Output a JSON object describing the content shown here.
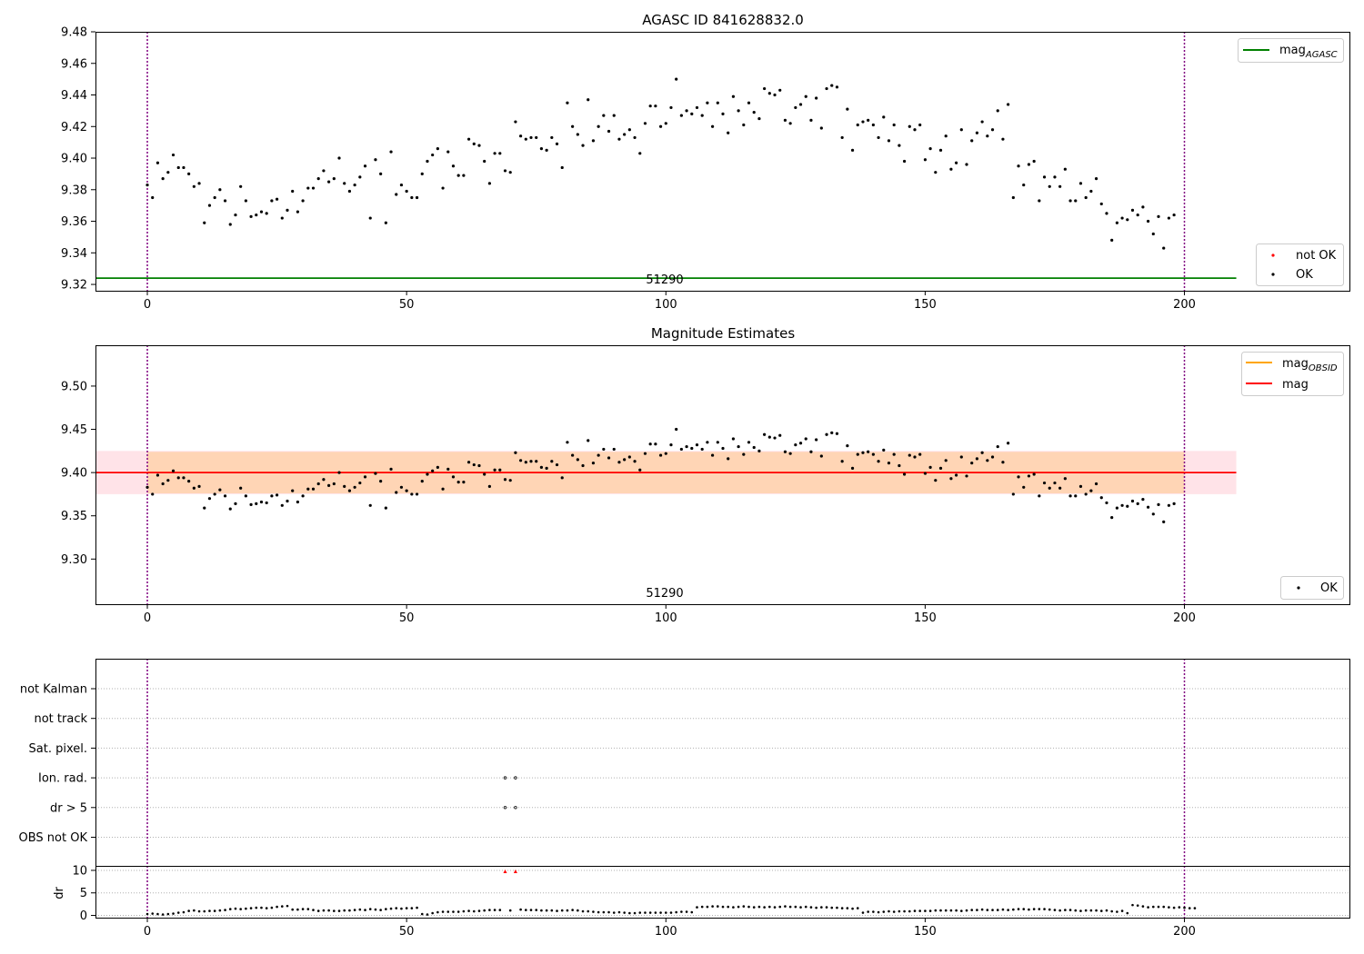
{
  "chart_data": [
    {
      "type": "scatter",
      "title": "AGASC ID 841628832.0",
      "xlim": [
        -10,
        232
      ],
      "ylim": [
        9.316,
        9.48
      ],
      "xticks": [
        0,
        50,
        100,
        150,
        200
      ],
      "yticks": [
        9.32,
        9.34,
        9.36,
        9.38,
        9.4,
        9.42,
        9.44,
        9.46,
        9.48
      ],
      "ytick_labels": [
        "9.32",
        "9.34",
        "9.36",
        "9.38",
        "9.40",
        "9.42",
        "9.44",
        "9.46",
        "9.48"
      ],
      "vlines": [
        0,
        200
      ],
      "obsid_label": {
        "text": "51290",
        "x": 100,
        "y": 9.322
      },
      "hline": {
        "name": "mag_AGASC",
        "y": 9.324,
        "x_range": [
          -10,
          210
        ],
        "color": "#008000"
      },
      "series": [
        {
          "name": "OK",
          "color": "#000000",
          "y": [
            9.383,
            9.375,
            9.397,
            9.387,
            9.391,
            9.402,
            9.394,
            9.394,
            9.39,
            9.382,
            9.384,
            9.359,
            9.37,
            9.375,
            9.38,
            9.373,
            9.358,
            9.364,
            9.382,
            9.373,
            9.363,
            9.364,
            9.366,
            9.365,
            9.373,
            9.374,
            9.362,
            9.367,
            9.379,
            9.366,
            9.373,
            9.381,
            9.381,
            9.387,
            9.392,
            9.385,
            9.387,
            9.4,
            9.384,
            9.379,
            9.383,
            9.388,
            9.395,
            9.362,
            9.399,
            9.39,
            9.359,
            9.404,
            9.377,
            9.383,
            9.379,
            9.375,
            9.375,
            9.39,
            9.398,
            9.402,
            9.406,
            9.381,
            9.404,
            9.395,
            9.389,
            9.389,
            9.412,
            9.409,
            9.408,
            9.398,
            9.384,
            9.403,
            9.403,
            9.392,
            9.391,
            9.423,
            9.414,
            9.412,
            9.413,
            9.413,
            9.406,
            9.405,
            9.413,
            9.409,
            9.394,
            9.435,
            9.42,
            9.415,
            9.408,
            9.437,
            9.411,
            9.42,
            9.427,
            9.417,
            9.427,
            9.412,
            9.415,
            9.418,
            9.413,
            9.403,
            9.422,
            9.433,
            9.433,
            9.42,
            9.422,
            9.432,
            9.45,
            9.427,
            9.43,
            9.428,
            9.432,
            9.427,
            9.435,
            9.42,
            9.435,
            9.428,
            9.416,
            9.439,
            9.43,
            9.421,
            9.435,
            9.429,
            9.425,
            9.444,
            9.441,
            9.44,
            9.443,
            9.424,
            9.422,
            9.432,
            9.434,
            9.439,
            9.424,
            9.438,
            9.419,
            9.444,
            9.446,
            9.445,
            9.413,
            9.431,
            9.405,
            9.421,
            9.423,
            9.424,
            9.421,
            9.413,
            9.426,
            9.411,
            9.421,
            9.408,
            9.398,
            9.42,
            9.418,
            9.421,
            9.399,
            9.406,
            9.391,
            9.405,
            9.414,
            9.393,
            9.397,
            9.418,
            9.396,
            9.411,
            9.416,
            9.423,
            9.414,
            9.418,
            9.43,
            9.412,
            9.434,
            9.375,
            9.395,
            9.383,
            9.396,
            9.398,
            9.373,
            9.388,
            9.382,
            9.388,
            9.382,
            9.393,
            9.373,
            9.373,
            9.384,
            9.375,
            9.379,
            9.387,
            9.371,
            9.365,
            9.348,
            9.359,
            9.362,
            9.361,
            9.367,
            9.364,
            9.369,
            9.36,
            9.352,
            9.363,
            9.343,
            9.362,
            9.364
          ]
        },
        {
          "name": "not OK",
          "color": "#ff0000",
          "y": []
        }
      ],
      "legend_upper": {
        "loc": "upper right",
        "entries": [
          {
            "label": "mag",
            "sub": "AGASC",
            "color": "#008000",
            "marker": "line"
          }
        ]
      },
      "legend_lower": {
        "loc": "lower right",
        "entries": [
          {
            "label": "not OK",
            "color": "#ff0000",
            "marker": "dot"
          },
          {
            "label": "OK",
            "color": "#000000",
            "marker": "dot"
          }
        ]
      }
    },
    {
      "type": "scatter",
      "title": "Magnitude Estimates",
      "xlim": [
        -10,
        232
      ],
      "ylim": [
        9.2478,
        9.5472
      ],
      "xticks": [
        0,
        50,
        100,
        150,
        200
      ],
      "yticks": [
        9.3,
        9.35,
        9.4,
        9.45,
        9.5
      ],
      "ytick_labels": [
        "9.30",
        "9.35",
        "9.40",
        "9.45",
        "9.50"
      ],
      "vlines": [
        0,
        200
      ],
      "obsid_label": {
        "text": "51290",
        "x": 100,
        "y": 9.259
      },
      "lines": [
        {
          "name": "mag_OBSID",
          "y": 9.4,
          "x_range": [
            0,
            200
          ],
          "color": "#ffa500"
        },
        {
          "name": "mag",
          "y": 9.4,
          "x_range": [
            -10,
            210
          ],
          "color": "#ff0000"
        }
      ],
      "bands": [
        {
          "y_range": [
            9.375,
            9.425
          ],
          "x_range": [
            -10,
            210
          ],
          "color": "#ffc0cb",
          "opacity": 0.45
        },
        {
          "y_range": [
            9.376,
            9.424
          ],
          "x_range": [
            0,
            200
          ],
          "color": "#ffa500",
          "opacity": 0.22
        }
      ],
      "series": [
        {
          "name": "OK",
          "color": "#000000",
          "same_as_panel": 0
        }
      ],
      "legend_upper": {
        "loc": "upper right",
        "entries": [
          {
            "label": "mag",
            "sub": "OBSID",
            "color": "#ffa500",
            "marker": "line"
          },
          {
            "label": "mag",
            "sub": "",
            "color": "#ff0000",
            "marker": "line"
          }
        ]
      },
      "legend_lower": {
        "loc": "lower right",
        "entries": [
          {
            "label": "OK",
            "color": "#000000",
            "marker": "dot"
          }
        ]
      }
    },
    {
      "type": "scatter",
      "title": "",
      "xlim": [
        -10,
        232
      ],
      "categories": [
        "OBS not OK",
        "dr > 5",
        "Ion. rad.",
        "Sat. pixel.",
        "not track",
        "not Kalman"
      ],
      "flags": [
        {
          "category": "Ion. rad.",
          "x": [
            69,
            71
          ]
        },
        {
          "category": "dr > 5",
          "x": [
            69,
            71
          ]
        }
      ]
    },
    {
      "type": "scatter",
      "title": "",
      "xlim": [
        -10,
        232
      ],
      "ylim": [
        -0.5,
        11
      ],
      "xticks": [
        0,
        50,
        100,
        150,
        200
      ],
      "yticks": [
        0,
        5,
        10
      ],
      "ytick_labels": [
        "0",
        "5",
        "10"
      ],
      "ylabel": "dr",
      "vlines": [
        0,
        200
      ],
      "series": [
        {
          "name": "dr",
          "color": "#000000",
          "y": [
            0.3,
            0.4,
            0.3,
            0.2,
            0.3,
            0.4,
            0.6,
            0.7,
            1.0,
            1.1,
            0.9,
            0.9,
            1.0,
            1.0,
            1.1,
            1.2,
            1.4,
            1.5,
            1.4,
            1.5,
            1.6,
            1.7,
            1.7,
            1.6,
            1.7,
            1.9,
            2.0,
            2.1,
            1.3,
            1.3,
            1.4,
            1.4,
            1.2,
            1.0,
            1.1,
            1.1,
            1.0,
            1.0,
            1.1,
            1.1,
            1.2,
            1.3,
            1.2,
            1.4,
            1.3,
            1.2,
            1.4,
            1.5,
            1.6,
            1.5,
            1.6,
            1.6,
            1.7,
            0.3,
            0.2,
            0.5,
            0.7,
            0.8,
            0.8,
            0.8,
            0.8,
            0.9,
            1.0,
            0.9,
            1.0,
            1.1,
            1.2,
            1.2,
            1.2,
            null,
            1.1,
            null,
            1.3,
            1.2,
            1.2,
            1.2,
            1.1,
            1.1,
            1.1,
            1.0,
            1.1,
            1.1,
            1.2,
            1.1,
            0.9,
            0.9,
            0.8,
            0.7,
            0.7,
            0.7,
            0.6,
            0.7,
            0.6,
            0.5,
            0.5,
            0.6,
            0.6,
            0.6,
            0.6,
            0.6,
            0.6,
            0.6,
            0.7,
            0.8,
            0.8,
            0.7,
            1.8,
            1.9,
            1.9,
            2.0,
            2.0,
            1.9,
            1.9,
            1.8,
            1.9,
            2.0,
            1.9,
            1.8,
            1.9,
            1.8,
            1.9,
            1.8,
            1.9,
            2.0,
            1.9,
            1.9,
            1.8,
            1.9,
            1.8,
            1.7,
            1.8,
            1.8,
            1.7,
            1.7,
            1.6,
            1.6,
            1.5,
            1.6,
            0.6,
            0.8,
            0.8,
            0.7,
            0.8,
            0.9,
            0.8,
            0.9,
            0.9,
            0.9,
            1.0,
            1.0,
            1.0,
            1.0,
            1.1,
            1.1,
            1.1,
            1.1,
            1.1,
            1.0,
            1.1,
            1.2,
            1.2,
            1.3,
            1.2,
            1.2,
            1.2,
            1.3,
            1.2,
            1.3,
            1.4,
            1.4,
            1.3,
            1.4,
            1.4,
            1.4,
            1.3,
            1.2,
            1.1,
            1.2,
            1.2,
            1.1,
            1.0,
            1.1,
            1.1,
            1.1,
            1.0,
            1.1,
            0.9,
            0.8,
            1.0,
            0.5,
            2.3,
            2.2,
            2.0,
            1.8,
            1.9,
            1.9,
            1.9,
            1.8,
            1.7,
            1.8,
            1.7,
            1.6,
            1.6
          ]
        },
        {
          "name": "dr flagged",
          "color": "#ff0000",
          "x": [
            69,
            71
          ],
          "y": [
            9.8,
            9.8
          ]
        }
      ]
    }
  ]
}
